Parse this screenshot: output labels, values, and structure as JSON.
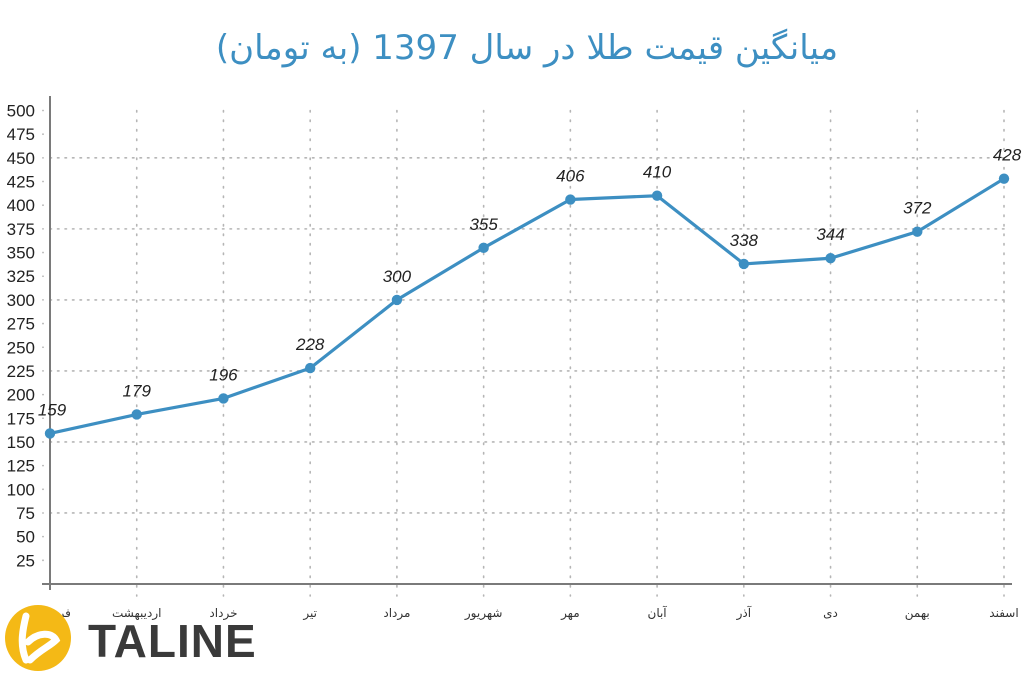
{
  "title": "میانگین قیمت طلا در سال 1397 (به تومان)",
  "logo": {
    "text": "TALINE",
    "color": "#f4b916"
  },
  "colors": {
    "line": "#3d8fc2",
    "title": "#3d8fc2",
    "grid": "#b5b5b5",
    "axis": "#7a7a7a"
  },
  "chart_data": {
    "type": "line",
    "title": "میانگین قیمت طلا در سال 1397 (به تومان)",
    "xlabel": "",
    "ylabel": "",
    "categories": [
      "فروردین",
      "اردیبهشت",
      "خرداد",
      "تیر",
      "مرداد",
      "شهریور",
      "مهر",
      "آبان",
      "آذر",
      "دی",
      "بهمن",
      "اسفند"
    ],
    "values": [
      159,
      179,
      196,
      228,
      300,
      355,
      406,
      410,
      338,
      344,
      372,
      428
    ],
    "ylim": [
      0,
      500
    ],
    "yticks": [
      25,
      50,
      75,
      100,
      125,
      150,
      175,
      200,
      225,
      250,
      275,
      300,
      325,
      350,
      375,
      400,
      425,
      450,
      475,
      500
    ],
    "horizontal_grid": [
      75,
      150,
      225,
      300,
      375,
      450
    ],
    "grid": true,
    "legend": "none",
    "data_labels": true
  }
}
